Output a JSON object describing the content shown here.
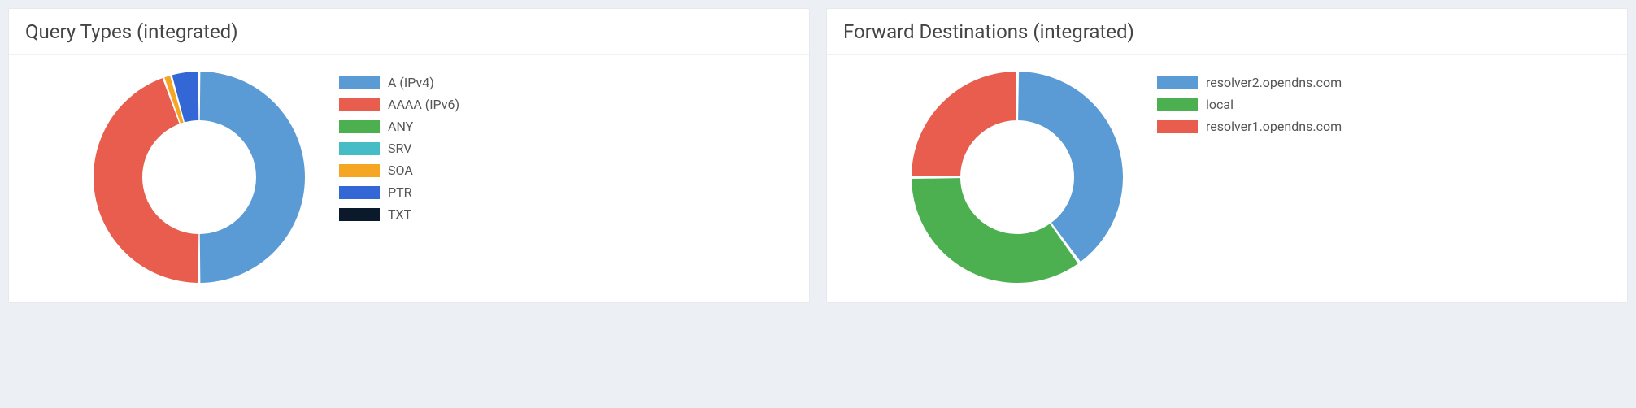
{
  "page_background": "#ecf0f5",
  "panels": {
    "query_types": {
      "title": "Query Types (integrated)",
      "chart": {
        "type": "donut",
        "outer_radius": 130,
        "inner_radius": 70,
        "slice_gap_deg": 1.2,
        "start_angle_deg": 0,
        "background_color": "#ffffff",
        "items": [
          {
            "label": "A (IPv4)",
            "value": 50.0,
            "color": "#5b9bd5"
          },
          {
            "label": "AAAA (IPv6)",
            "value": 44.5,
            "color": "#e85d4e"
          },
          {
            "label": "ANY",
            "value": 0.0,
            "color": "#4caf50"
          },
          {
            "label": "SRV",
            "value": 0.0,
            "color": "#46bdc6"
          },
          {
            "label": "SOA",
            "value": 1.2,
            "color": "#f5a623"
          },
          {
            "label": "PTR",
            "value": 4.3,
            "color": "#3367d6"
          },
          {
            "label": "TXT",
            "value": 0.0,
            "color": "#0b1a2b"
          }
        ]
      },
      "legend_swatch": {
        "width": 50,
        "height": 16
      },
      "label_fontsize": 16,
      "title_fontsize": 24
    },
    "forward_destinations": {
      "title": "Forward Destinations (integrated)",
      "chart": {
        "type": "donut",
        "outer_radius": 130,
        "inner_radius": 70,
        "slice_gap_deg": 1.8,
        "start_angle_deg": 0,
        "background_color": "#ffffff",
        "items": [
          {
            "label": "resolver2.opendns.com",
            "value": 40.0,
            "color": "#5b9bd5"
          },
          {
            "label": "local",
            "value": 35.0,
            "color": "#4caf50"
          },
          {
            "label": "resolver1.opendns.com",
            "value": 25.0,
            "color": "#e85d4e"
          }
        ]
      },
      "legend_swatch": {
        "width": 50,
        "height": 16
      },
      "label_fontsize": 16,
      "title_fontsize": 24
    }
  }
}
